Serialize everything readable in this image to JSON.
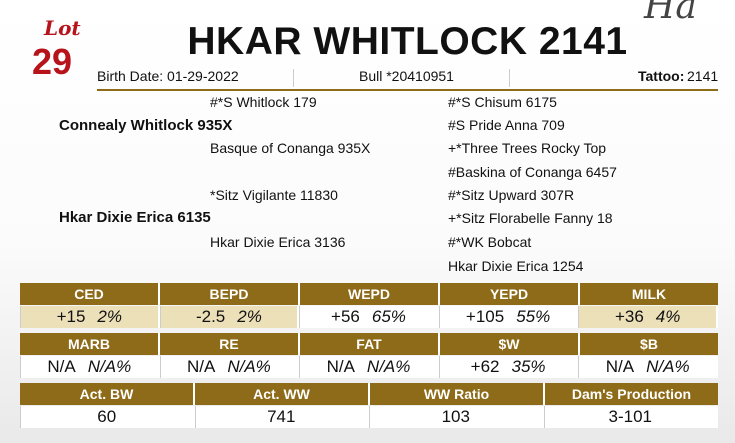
{
  "header": {
    "lot_label": "Lot",
    "lot_number": "29",
    "title": "HKAR WHITLOCK 2141",
    "corner_script": "Ha",
    "birth_date": "Birth Date: 01-29-2022",
    "registration": "Bull *20410951",
    "tattoo_label": "Tattoo:",
    "tattoo": "2141"
  },
  "pedigree": {
    "sire_sire": "#*S Whitlock 179",
    "sire": "Connealy Whitlock 935X",
    "sire_dam": "Basque of Conanga 935X",
    "dam_sire": "*Sitz Vigilante 11830",
    "dam": "Hkar Dixie Erica 6135",
    "dam_dam": "Hkar Dixie Erica 3136",
    "right": [
      "#*S Chisum 6175",
      "#S Pride Anna 709",
      "+*Three Trees Rocky Top",
      "#Baskina of Conanga 6457",
      "#*Sitz Upward 307R",
      "+*Sitz Florabelle Fanny 18",
      "#*WK Bobcat",
      "Hkar Dixie Erica 1254"
    ]
  },
  "epd_row1": [
    {
      "label": "CED",
      "value": "+15",
      "pct": "2%",
      "highlight": true
    },
    {
      "label": "BEPD",
      "value": "-2.5",
      "pct": "2%",
      "highlight": true
    },
    {
      "label": "WEPD",
      "value": "+56",
      "pct": "65%",
      "highlight": false
    },
    {
      "label": "YEPD",
      "value": "+105",
      "pct": "55%",
      "highlight": false
    },
    {
      "label": "MILK",
      "value": "+36",
      "pct": "4%",
      "highlight": true
    }
  ],
  "epd_row2": [
    {
      "label": "MARB",
      "value": "N/A",
      "pct": "N/A%"
    },
    {
      "label": "RE",
      "value": "N/A",
      "pct": "N/A%"
    },
    {
      "label": "FAT",
      "value": "N/A",
      "pct": "N/A%"
    },
    {
      "label": "$W",
      "value": "+62",
      "pct": "35%"
    },
    {
      "label": "$B",
      "value": "N/A",
      "pct": "N/A%"
    }
  ],
  "actuals": [
    {
      "label": "Act. BW",
      "value": "60"
    },
    {
      "label": "Act. WW",
      "value": "741"
    },
    {
      "label": "WW Ratio",
      "value": "103"
    },
    {
      "label": "Dam's Production",
      "value": "3-101"
    }
  ]
}
